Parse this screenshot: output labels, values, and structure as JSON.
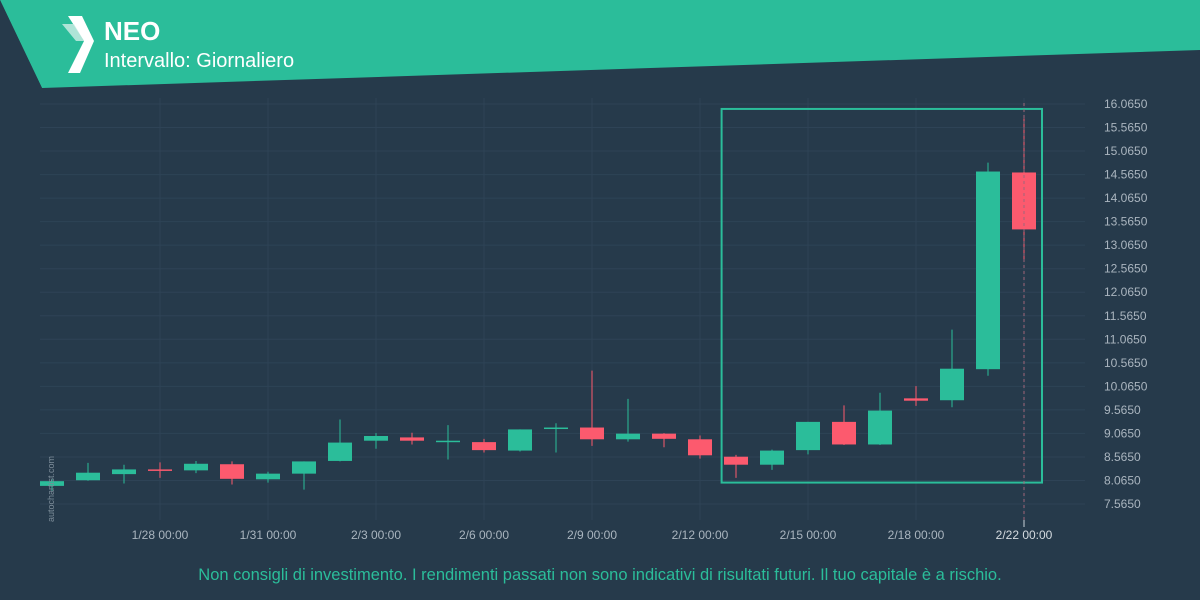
{
  "header": {
    "title": "NEO",
    "subtitle": "Intervallo: Giornaliero"
  },
  "footer": {
    "disclaimer": "Non consigli di investimento. I rendimenti passati non sono indicativi di risultati futuri. Il tuo capitale è a rischio."
  },
  "watermark": "autochartist.com",
  "colors": {
    "background": "#263a4b",
    "accent": "#2bbd9a",
    "bullish": "#2bbd9a",
    "bearish": "#fc5a6e",
    "axis_text": "#aab5bf"
  },
  "chart_data": {
    "type": "candlestick",
    "ylim": [
      7.3,
      16.3
    ],
    "y_ticks": [
      "16.0650",
      "15.5650",
      "15.0650",
      "14.5650",
      "14.0650",
      "13.5650",
      "13.0650",
      "12.5650",
      "12.0650",
      "11.5650",
      "11.0650",
      "10.5650",
      "10.0650",
      "9.5650",
      "9.0650",
      "8.5650",
      "8.0650",
      "7.5650"
    ],
    "x_ticks": [
      {
        "day": 3,
        "label": "1/28 00:00"
      },
      {
        "day": 6,
        "label": "1/31 00:00"
      },
      {
        "day": 9,
        "label": "2/3 00:00"
      },
      {
        "day": 12,
        "label": "2/6 00:00"
      },
      {
        "day": 15,
        "label": "2/9 00:00"
      },
      {
        "day": 18,
        "label": "2/12 00:00"
      },
      {
        "day": 21,
        "label": "2/15 00:00"
      },
      {
        "day": 24,
        "label": "2/18 00:00"
      },
      {
        "day": 27,
        "label": "2/22 00:00",
        "highlight": true
      }
    ],
    "candles": [
      {
        "date": "1/25",
        "open": 7.95,
        "high": 8.1,
        "low": 7.85,
        "close": 8.05
      },
      {
        "date": "1/26",
        "open": 8.07,
        "high": 8.44,
        "low": 8.06,
        "close": 8.23
      },
      {
        "date": "1/27",
        "open": 8.2,
        "high": 8.4,
        "low": 8.0,
        "close": 8.3
      },
      {
        "date": "1/28",
        "open": 8.3,
        "high": 8.45,
        "low": 8.12,
        "close": 8.27
      },
      {
        "date": "1/29",
        "open": 8.28,
        "high": 8.48,
        "low": 8.22,
        "close": 8.42
      },
      {
        "date": "1/30",
        "open": 8.41,
        "high": 8.47,
        "low": 7.98,
        "close": 8.1
      },
      {
        "date": "1/31",
        "open": 8.09,
        "high": 8.25,
        "low": 8.02,
        "close": 8.21
      },
      {
        "date": "2/1",
        "open": 8.21,
        "high": 8.47,
        "low": 7.87,
        "close": 8.47
      },
      {
        "date": "2/2",
        "open": 8.48,
        "high": 9.36,
        "low": 8.47,
        "close": 8.87
      },
      {
        "date": "2/3",
        "open": 8.91,
        "high": 9.07,
        "low": 8.74,
        "close": 9.01
      },
      {
        "date": "2/4",
        "open": 8.98,
        "high": 9.08,
        "low": 8.83,
        "close": 8.91
      },
      {
        "date": "2/5",
        "open": 8.9,
        "high": 9.24,
        "low": 8.51,
        "close": 8.91
      },
      {
        "date": "2/6",
        "open": 8.88,
        "high": 8.95,
        "low": 8.66,
        "close": 8.71
      },
      {
        "date": "2/7",
        "open": 8.7,
        "high": 9.15,
        "low": 8.68,
        "close": 9.15
      },
      {
        "date": "2/8",
        "open": 9.16,
        "high": 9.28,
        "low": 8.66,
        "close": 9.19
      },
      {
        "date": "2/9",
        "open": 9.19,
        "high": 10.4,
        "low": 8.8,
        "close": 8.94
      },
      {
        "date": "2/10",
        "open": 8.94,
        "high": 9.8,
        "low": 8.89,
        "close": 9.06
      },
      {
        "date": "2/11",
        "open": 9.06,
        "high": 9.07,
        "low": 8.77,
        "close": 8.95
      },
      {
        "date": "2/12",
        "open": 8.94,
        "high": 9.02,
        "low": 8.53,
        "close": 8.6
      },
      {
        "date": "2/13",
        "open": 8.57,
        "high": 8.61,
        "low": 8.12,
        "close": 8.4
      },
      {
        "date": "2/14",
        "open": 8.4,
        "high": 8.72,
        "low": 8.29,
        "close": 8.7
      },
      {
        "date": "2/15",
        "open": 8.71,
        "high": 9.31,
        "low": 8.62,
        "close": 9.31
      },
      {
        "date": "2/16",
        "open": 9.31,
        "high": 9.66,
        "low": 8.82,
        "close": 8.83
      },
      {
        "date": "2/17",
        "open": 8.83,
        "high": 9.93,
        "low": 8.82,
        "close": 9.55
      },
      {
        "date": "2/18",
        "open": 9.81,
        "high": 10.07,
        "low": 9.65,
        "close": 9.76
      },
      {
        "date": "2/19",
        "open": 9.77,
        "high": 11.27,
        "low": 9.62,
        "close": 10.44
      },
      {
        "date": "2/20",
        "open": 10.43,
        "high": 14.82,
        "low": 10.29,
        "close": 14.63
      },
      {
        "date": "2/21",
        "open": 14.61,
        "high": 15.76,
        "low": 12.77,
        "close": 13.4
      }
    ],
    "pattern_box": {
      "day_start": 18.6,
      "day_end": 27.5,
      "price_low": 8.02,
      "price_high": 15.96
    }
  }
}
